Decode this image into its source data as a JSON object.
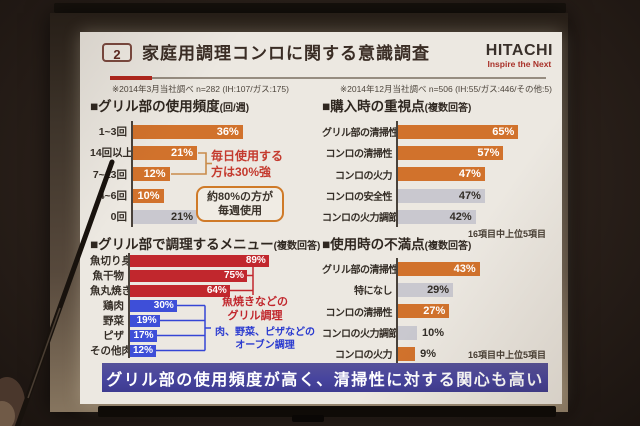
{
  "slide": {
    "slide_number": "2",
    "title": "家庭用調理コンロに関する意識調査",
    "logo": {
      "brand": "HITACHI",
      "slogan": "Inspire the Next"
    },
    "notes": {
      "left": "※2014年3月当社調べ n=282 (IH:107/ガス:175)",
      "right": "※2014年12月当社調べ n=506 (IH:55/ガス:446/その他:5)"
    },
    "banner": "グリル部の使用頻度が高く、清掃性に対する関心も高い"
  },
  "colors": {
    "slide_bg": "#ece8e1",
    "accent_red": "#b2271d",
    "banner_bg": "#47449e",
    "annotation_red": "#c43a2e",
    "annotation_blue": "#2b3bd0",
    "annotation_box_border": "#cf7a28",
    "bars": {
      "orange": "#d1722c",
      "gray": "#c9c8cf",
      "red": "#c1272d",
      "blue": "#3e4fd8"
    }
  },
  "chart_data": [
    {
      "type": "bar",
      "orientation": "horizontal",
      "title": "■グリル部の使用頻度",
      "title_suffix": "(回/週)",
      "unit": "%",
      "categories": [
        "1~3回",
        "14回以上",
        "7~13回",
        "4~6回",
        "0回"
      ],
      "values": [
        36,
        21,
        12,
        10,
        21
      ],
      "bar_colors": [
        "orange",
        "orange",
        "orange",
        "orange",
        "gray"
      ],
      "annotations": [
        "毎日使用する\n方は30%強",
        "約80%の方が\n毎週使用"
      ]
    },
    {
      "type": "bar",
      "orientation": "horizontal",
      "title": "■購入時の重視点",
      "title_suffix": "(複数回答)",
      "unit": "%",
      "categories": [
        "グリル部の清掃性",
        "コンロの清掃性",
        "コンロの火力",
        "コンロの安全性",
        "コンロの火力調節"
      ],
      "values": [
        65,
        57,
        47,
        47,
        42
      ],
      "bar_colors": [
        "orange",
        "orange",
        "orange",
        "gray",
        "gray"
      ],
      "footnote": "16項目中上位5項目"
    },
    {
      "type": "bar",
      "orientation": "horizontal",
      "title": "■グリル部で調理するメニュー",
      "title_suffix": "(複数回答)",
      "unit": "%",
      "categories": [
        "魚切り身",
        "魚干物",
        "魚丸焼き",
        "鶏肉",
        "野菜",
        "ピザ",
        "その他肉"
      ],
      "values": [
        89,
        75,
        64,
        30,
        19,
        17,
        12
      ],
      "bar_colors": [
        "red",
        "red",
        "red",
        "blue",
        "blue",
        "blue",
        "blue"
      ],
      "annotations": [
        "魚焼きなどの\nグリル調理",
        "肉、野菜、ピザなどの\nオーブン調理"
      ]
    },
    {
      "type": "bar",
      "orientation": "horizontal",
      "title": "■使用時の不満点",
      "title_suffix": "(複数回答)",
      "unit": "%",
      "categories": [
        "グリル部の清掃性",
        "特になし",
        "コンロの清掃性",
        "コンロの火力調節",
        "コンロの火力"
      ],
      "values": [
        43,
        29,
        27,
        10,
        9
      ],
      "bar_colors": [
        "orange",
        "gray",
        "orange",
        "gray",
        "orange"
      ],
      "value_label_inside": [
        true,
        true,
        true,
        false,
        false
      ],
      "footnote": "16項目中上位5項目"
    }
  ]
}
